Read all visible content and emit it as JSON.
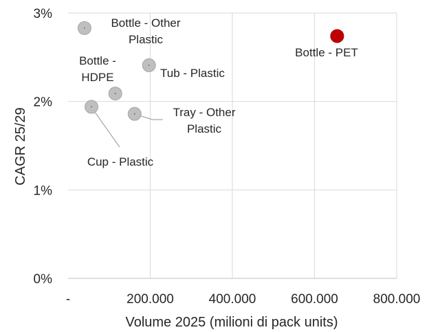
{
  "chart_data": {
    "type": "scatter",
    "xlabel": "Volume 2025 (milioni di pack units)",
    "ylabel": "CAGR 25/29",
    "xlim": [
      0,
      800000
    ],
    "ylim": [
      0,
      3
    ],
    "x_ticks": [
      {
        "value": 0,
        "label": "-"
      },
      {
        "value": 200000,
        "label": "200.000"
      },
      {
        "value": 400000,
        "label": "400.000"
      },
      {
        "value": 600000,
        "label": "600.000"
      },
      {
        "value": 800000,
        "label": "800.000"
      }
    ],
    "y_ticks": [
      {
        "value": 0,
        "label": "0%"
      },
      {
        "value": 1,
        "label": "1%"
      },
      {
        "value": 2,
        "label": "2%"
      },
      {
        "value": 3,
        "label": "3%"
      }
    ],
    "grid": true,
    "colors": {
      "default": "#BFBFBF",
      "highlight": "#C00000"
    },
    "points": [
      {
        "name": "Bottle - Other Plastic",
        "lines": [
          "Bottle - Other",
          "Plastic"
        ],
        "x": 40000,
        "y": 2.83,
        "highlight": false
      },
      {
        "name": "Bottle - PET",
        "lines": [
          "Bottle - PET"
        ],
        "x": 655000,
        "y": 2.74,
        "highlight": true
      },
      {
        "name": "Tub - Plastic",
        "lines": [
          "Tub - Plastic"
        ],
        "x": 197000,
        "y": 2.41,
        "highlight": false
      },
      {
        "name": "Bottle - HDPE",
        "lines": [
          "Bottle -",
          "HDPE"
        ],
        "x": 115000,
        "y": 2.09,
        "highlight": false
      },
      {
        "name": "Cup - Plastic",
        "lines": [
          "Cup - Plastic"
        ],
        "x": 57000,
        "y": 1.94,
        "highlight": false
      },
      {
        "name": "Tray - Other Plastic",
        "lines": [
          "Tray - Other",
          "Plastic"
        ],
        "x": 162000,
        "y": 1.86,
        "highlight": false
      }
    ]
  }
}
